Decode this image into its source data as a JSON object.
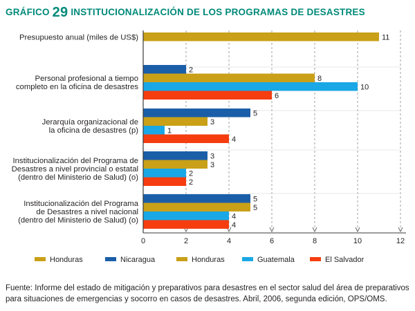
{
  "chart_data": {
    "type": "bar",
    "orientation": "horizontal",
    "title_prefix": "GRÁFICO",
    "title_number": "29",
    "title": "INSTITUCIONALIZACIÓN DE LOS PROGRAMAS DE DESASTRES",
    "xlim": [
      0,
      12
    ],
    "x_ticks": [
      "0",
      "2",
      "4",
      "6",
      "8",
      "10",
      "12"
    ],
    "categories": [
      {
        "label_lines": [
          "Presupuesto anual (miles de US$)"
        ],
        "bars": [
          {
            "series": "Honduras (presupuesto)",
            "value": 11
          }
        ]
      },
      {
        "label_lines": [
          "Personal profesional a tiempo",
          "completo en la oficina de desastres"
        ],
        "bars": [
          {
            "series": "Nicaragua",
            "value": 2
          },
          {
            "series": "Honduras",
            "value": 8
          },
          {
            "series": "Guatemala",
            "value": 10
          },
          {
            "series": "El Salvador",
            "value": 6
          }
        ]
      },
      {
        "label_lines": [
          "Jerarquía organizacional de",
          "la oficina de desastres (p)"
        ],
        "bars": [
          {
            "series": "Nicaragua",
            "value": 5
          },
          {
            "series": "Honduras",
            "value": 3
          },
          {
            "series": "Guatemala",
            "value": 1
          },
          {
            "series": "El Salvador",
            "value": 4
          }
        ]
      },
      {
        "label_lines": [
          "Institucionalización del Programa de",
          "Desastres a nivel provincial o estatal",
          "(dentro del Ministerio de Salud) (o)"
        ],
        "bars": [
          {
            "series": "Nicaragua",
            "value": 3
          },
          {
            "series": "Honduras",
            "value": 3
          },
          {
            "series": "Guatemala",
            "value": 2
          },
          {
            "series": "El Salvador",
            "value": 2
          }
        ]
      },
      {
        "label_lines": [
          "Institucionalización del Programa",
          "de Desastres a nivel nacional",
          "(dentro del Ministerio de Salud) (o)"
        ],
        "bars": [
          {
            "series": "Nicaragua",
            "value": 5
          },
          {
            "series": "Honduras",
            "value": 5
          },
          {
            "series": "Guatemala",
            "value": 4
          },
          {
            "series": "El Salvador",
            "value": 4
          }
        ]
      }
    ],
    "legend": [
      {
        "label": "Honduras",
        "color": "#c9a017"
      },
      {
        "label": "Nicaragua",
        "color": "#1b5ea8"
      },
      {
        "label": "Honduras",
        "color": "#c9a017"
      },
      {
        "label": "Guatemala",
        "color": "#1aa7e6"
      },
      {
        "label": "El Salvador",
        "color": "#f53d0f"
      }
    ],
    "series_colors": {
      "Honduras (presupuesto)": "#c9a017",
      "Nicaragua": "#1b5ea8",
      "Honduras": "#c9a017",
      "Guatemala": "#1aa7e6",
      "El Salvador": "#f53d0f"
    },
    "source": "Fuente: Informe del estado de mitigación y preparativos para desastres en el sector salud del área de preparativos para situaciones de emergencias y socorro en casos de desastres. Abril, 2006, segunda edición, OPS/OMS."
  }
}
